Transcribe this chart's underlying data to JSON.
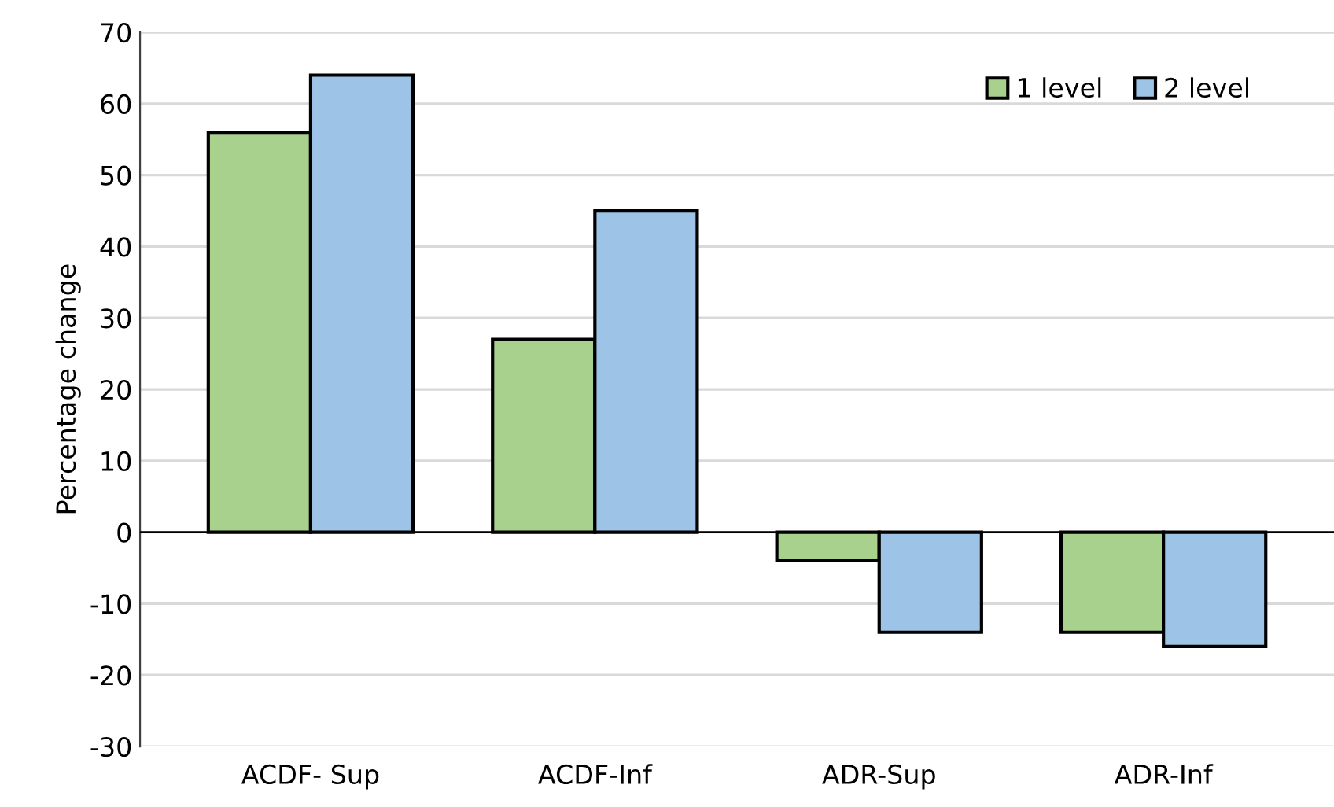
{
  "chart_data": {
    "type": "bar",
    "ylabel": "Percentage change",
    "categories": [
      "ACDF- Sup",
      "ACDF-Inf",
      "ADR-Sup",
      "ADR-Inf"
    ],
    "series": [
      {
        "name": "1 level",
        "color": "#a9d18e",
        "values": [
          56,
          27,
          -4,
          -14
        ]
      },
      {
        "name": "2 level",
        "color": "#9dc3e6",
        "values": [
          64,
          45,
          -14,
          -16
        ]
      }
    ],
    "ylim": [
      -30,
      70
    ],
    "yticks": [
      -30,
      -20,
      -10,
      0,
      10,
      20,
      30,
      40,
      50,
      60,
      70
    ],
    "grid": "y",
    "legend": "top right"
  }
}
